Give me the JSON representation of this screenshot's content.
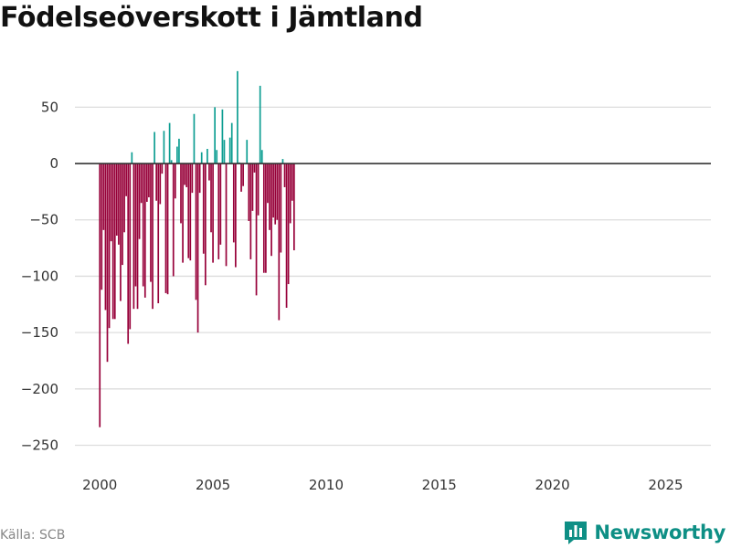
{
  "title": "Födelseöverskott i Jämtland",
  "source": "Källa: SCB",
  "brand": {
    "name": "Newsworthy",
    "icon": "bar-chart-logo-icon"
  },
  "colors": {
    "positive": "#0e9e92",
    "negative": "#970039",
    "grid": "#dddddd",
    "zero_line": "#333333",
    "brand": "#0e8f85"
  },
  "chart_data": {
    "type": "bar",
    "title": "Födelseöverskott i Jämtland",
    "xlabel": "",
    "ylabel": "",
    "frequency": "monthly",
    "start": "2000-01",
    "ylim": [
      -265,
      90
    ],
    "xlim": [
      1998.9,
      2027.0
    ],
    "yticks": [
      50,
      0,
      -50,
      -100,
      -150,
      -200,
      -250
    ],
    "ytick_labels": [
      "50",
      "0",
      "−50",
      "−100",
      "−150",
      "−200",
      "−250"
    ],
    "xticks": [
      2000,
      2005,
      2010,
      2015,
      2020,
      2025
    ],
    "xtick_labels": [
      "2000",
      "2005",
      "2010",
      "2015",
      "2020",
      "2025"
    ],
    "values": [
      -234,
      -112,
      -59,
      -130,
      -176,
      -146,
      -69,
      -138,
      -138,
      -64,
      -72,
      -122,
      -90,
      -61,
      -29,
      -160,
      -147,
      10,
      -129,
      -109,
      -129,
      -67,
      -35,
      -109,
      -119,
      -34,
      -30,
      -105,
      -129,
      28,
      -33,
      -124,
      -36,
      -9,
      29,
      -115,
      -116,
      36,
      3,
      -100,
      -31,
      15,
      22,
      -53,
      -88,
      -19,
      -21,
      -84,
      -86,
      -26,
      44,
      -121,
      -150,
      -26,
      10,
      -80,
      -108,
      13,
      -15,
      -61,
      -88,
      50,
      12,
      -85,
      -72,
      48,
      21,
      -91,
      0,
      23,
      36,
      -70,
      -92,
      82,
      1,
      -25,
      -20,
      0,
      21,
      -51,
      -85,
      -42,
      -8,
      -117,
      -46,
      69,
      12,
      -97,
      -97,
      -35,
      -59,
      -82,
      -48,
      -54,
      -50,
      -139,
      -79,
      4,
      -21,
      -128,
      -107,
      -53,
      -33,
      -77
    ]
  }
}
